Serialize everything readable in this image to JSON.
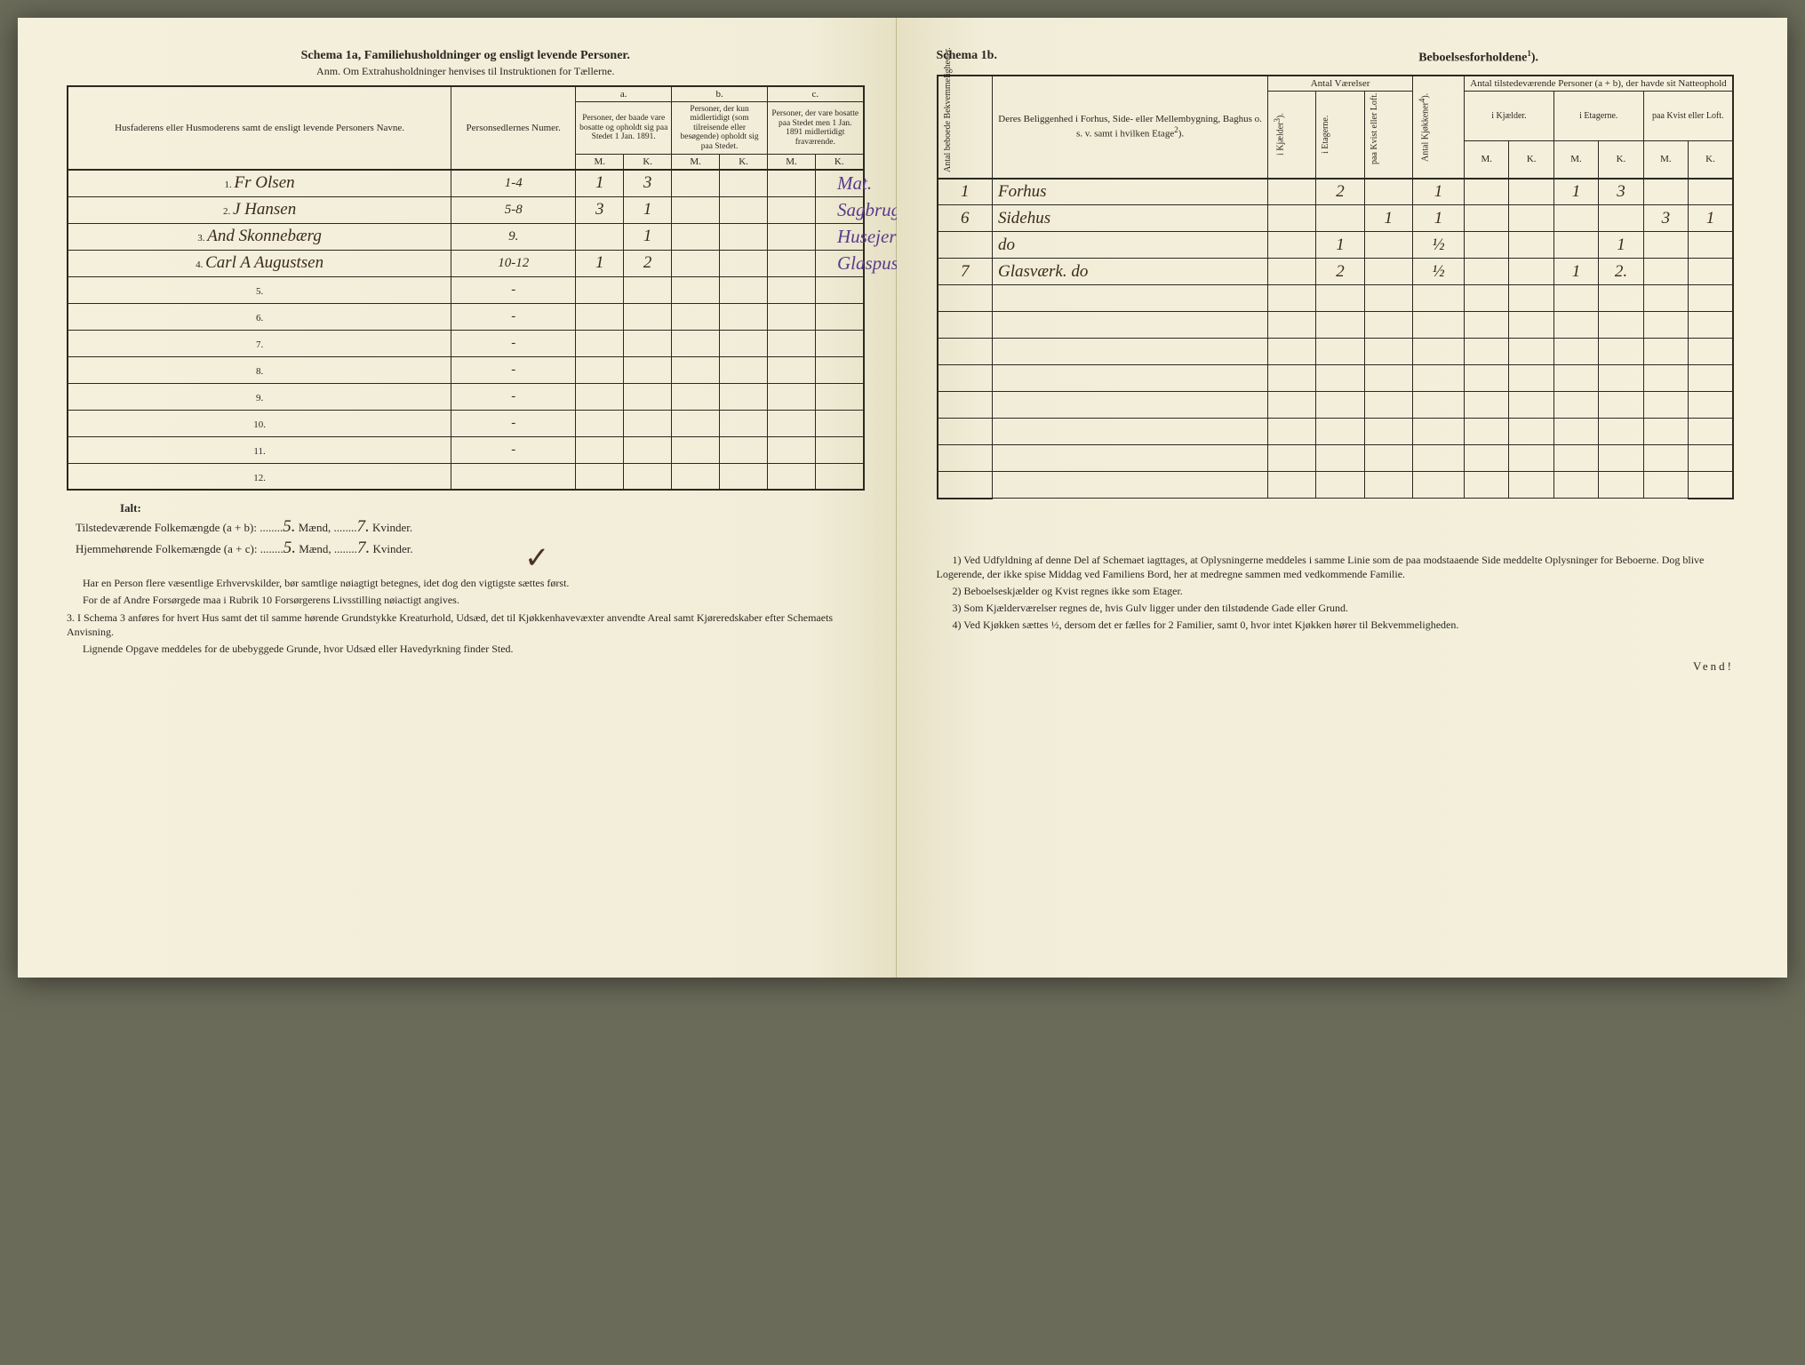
{
  "left": {
    "title": "Schema 1a,   Familiehusholdninger og ensligt levende Personer.",
    "anm": "Anm. Om Extrahusholdninger henvises til Instruktionen for Tællerne.",
    "header_names": "Husfaderens eller Husmoderens samt de ensligt levende Personers Navne.",
    "header_numre": "Personsedlernes Numer.",
    "header_a": "a.",
    "header_a_desc": "Personer, der baade vare bosatte og opholdt sig paa Stedet 1 Jan. 1891.",
    "header_b": "b.",
    "header_b_desc": "Personer, der kun midlertidigt (som tilreisende eller besøgende) opholdt sig paa Stedet.",
    "header_c": "c.",
    "header_c_desc": "Personer, der vare bosatte paa Stedet men 1 Jan. 1891 midlertidigt fraværende.",
    "header_M": "M.",
    "header_K": "K.",
    "rows": [
      {
        "idx": "1.",
        "name": "Fr Olsen",
        "num": "1-4",
        "aM": "1",
        "aK": "3",
        "note": "Mat."
      },
      {
        "idx": "2.",
        "name": "J Hansen",
        "num": "5-8",
        "aM": "3",
        "aK": "1",
        "note": "Sagbrugsarb."
      },
      {
        "idx": "3.",
        "name": "And Skonnebærg",
        "num": "9.",
        "aM": "",
        "aK": "1",
        "note": "Husejerske."
      },
      {
        "idx": "4.",
        "name": "Carl A Augustsen",
        "num": "10-12",
        "aM": "1",
        "aK": "2",
        "note": "Glaspuster"
      },
      {
        "idx": "5.",
        "name": "",
        "num": "-"
      },
      {
        "idx": "6.",
        "name": "",
        "num": "-"
      },
      {
        "idx": "7.",
        "name": "",
        "num": "-"
      },
      {
        "idx": "8.",
        "name": "",
        "num": "-"
      },
      {
        "idx": "9.",
        "name": "",
        "num": "-"
      },
      {
        "idx": "10.",
        "name": "",
        "num": "-"
      },
      {
        "idx": "11.",
        "name": "",
        "num": "-"
      },
      {
        "idx": "12.",
        "name": "",
        "num": ""
      }
    ],
    "ialt_title": "Ialt:",
    "ialt_line1_before": "Tilstedeværende Folkemængde (a + b): ........",
    "ialt_line1_m": "5.",
    "ialt_line1_mid": " Mænd, ........",
    "ialt_line1_k": "7.",
    "ialt_line1_end": " Kvinder.",
    "ialt_line2_before": "Hjemmehørende Folkemængde (a + c): ........",
    "ialt_line2_m": "5.",
    "ialt_line2_mid": " Mænd, ........",
    "ialt_line2_k": "7.",
    "ialt_line2_end": " Kvinder.",
    "check": "✓",
    "footnotes": [
      "Har en Person flere væsentlige Erhvervskilder, bør samtlige nøiagtigt betegnes, idet dog den vigtigste sættes først.",
      "For de af Andre Forsørgede maa i Rubrik 10 Forsørgerens Livsstilling nøiactigt angives.",
      "3. I Schema 3 anføres for hvert Hus samt det til samme hørende Grundstykke Kreaturhold, Udsæd, det til Kjøkkenhavevæxter anvendte Areal samt Kjøreredskaber efter Schemaets Anvisning.",
      "Lignende Opgave meddeles for de ubebyggede Grunde, hvor Udsæd eller Havedyrkning finder Sted."
    ]
  },
  "right": {
    "title_prefix": "Schema 1b.",
    "title_main": "Beboelsesforholdene",
    "sup1": "1",
    "header_antal_bekv": "Antal beboede Bekvemmeligheder.",
    "header_beligg": "Deres Beliggenhed i Forhus, Side- eller Mellembygning, Baghus o. s. v. samt i hvilken Etage",
    "sup2": "2",
    "header_antalv": "Antal Værelser",
    "header_kjaelder": "i Kjælder",
    "sup3": "3",
    "header_etagerne": "i Etagerne.",
    "header_kvist": "paa Kvist eller Loft.",
    "header_kjokkener": "Antal Kjøkkener",
    "sup4": "4",
    "header_tilstede": "Antal tilstedeværende Personer (a + b), der havde sit Natteophold",
    "header_ikjaelder": "i Kjælder.",
    "header_ietagerne": "i Etagerne.",
    "header_paakvist": "paa Kvist eller Loft.",
    "header_M": "M.",
    "header_K": "K.",
    "rows": [
      {
        "bekv": "1",
        "belig": "Forhus",
        "kj": "",
        "et": "2",
        "kv": "",
        "kjok": "1",
        "km": "",
        "kk": "",
        "em": "1",
        "ek": "3",
        "pm": "",
        "pk": ""
      },
      {
        "bekv": "6",
        "belig": "Sidehus",
        "kj": "",
        "et": "",
        "kv": "1",
        "kjok": "1",
        "km": "",
        "kk": "",
        "em": "",
        "ek": "",
        "pm": "3",
        "pk": "1"
      },
      {
        "bekv": "",
        "belig": "do",
        "kj": "",
        "et": "1",
        "kv": "",
        "kjok": "½",
        "km": "",
        "kk": "",
        "em": "",
        "ek": "1",
        "pm": "",
        "pk": ""
      },
      {
        "bekv": "7",
        "belig": "Glasværk. do",
        "kj": "",
        "et": "2",
        "kv": "",
        "kjok": "½",
        "km": "",
        "kk": "",
        "em": "1",
        "ek": "2.",
        "pm": "",
        "pk": ""
      },
      {},
      {},
      {},
      {},
      {},
      {},
      {},
      {}
    ],
    "footnotes": [
      "1) Ved Udfyldning af denne Del af Schemaet iagttages, at Oplysningerne meddeles i samme Linie som de paa modstaaende Side meddelte Oplysninger for Beboerne. Dog blive Logerende, der ikke spise Middag ved Familiens Bord, her at medregne sammen med vedkommende Familie.",
      "2) Beboelseskjælder og Kvist regnes ikke som Etager.",
      "3) Som Kjælderværelser regnes de, hvis Gulv ligger under den tilstødende Gade eller Grund.",
      "4) Ved Kjøkken sættes ½, dersom det er fælles for 2 Familier, samt 0, hvor intet Kjøkken hører til Bekvemmeligheden."
    ],
    "vend": "Vend!"
  }
}
